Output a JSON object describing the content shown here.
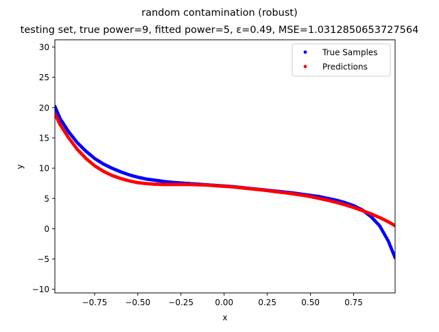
{
  "chart_data": {
    "type": "scatter",
    "title": "random contamination (robust)",
    "subtitle": "testing set, true power=9, fitted power=5, ε=0.49, MSE=1.0312850653727564",
    "xlabel": "x",
    "ylabel": "y",
    "xlim": [
      -0.98,
      0.99
    ],
    "ylim": [
      -10.6,
      31.2
    ],
    "x_ticks": [
      -0.75,
      -0.5,
      -0.25,
      0.0,
      0.25,
      0.5,
      0.75
    ],
    "x_tick_labels": [
      "−0.75",
      "−0.50",
      "−0.25",
      "0.00",
      "0.25",
      "0.50",
      "0.75"
    ],
    "y_ticks": [
      -10,
      -5,
      0,
      5,
      10,
      15,
      20,
      25,
      30
    ],
    "y_tick_labels": [
      "−10",
      "−5",
      "0",
      "5",
      "10",
      "15",
      "20",
      "25",
      "30"
    ],
    "grid": false,
    "legend_position": "upper right",
    "series": [
      {
        "name": "True Samples",
        "color": "#0000ff",
        "x": [
          -0.98,
          -0.95,
          -0.9,
          -0.85,
          -0.8,
          -0.75,
          -0.7,
          -0.65,
          -0.6,
          -0.55,
          -0.5,
          -0.45,
          -0.4,
          -0.35,
          -0.3,
          -0.25,
          -0.2,
          -0.15,
          -0.1,
          -0.05,
          0.0,
          0.05,
          0.1,
          0.15,
          0.2,
          0.25,
          0.3,
          0.35,
          0.4,
          0.45,
          0.5,
          0.55,
          0.6,
          0.65,
          0.7,
          0.75,
          0.8,
          0.85,
          0.9,
          0.95,
          0.99
        ],
        "y": [
          20.2,
          18.2,
          16.0,
          14.2,
          12.8,
          11.6,
          10.7,
          10.0,
          9.4,
          8.9,
          8.5,
          8.2,
          8.0,
          7.8,
          7.65,
          7.55,
          7.45,
          7.35,
          7.25,
          7.15,
          7.05,
          6.95,
          6.8,
          6.65,
          6.5,
          6.35,
          6.2,
          6.05,
          5.9,
          5.7,
          5.5,
          5.3,
          5.0,
          4.7,
          4.3,
          3.8,
          3.1,
          2.0,
          0.5,
          -2.0,
          -4.8
        ]
      },
      {
        "name": "Predictions",
        "color": "#ff0000",
        "x": [
          -0.98,
          -0.95,
          -0.9,
          -0.85,
          -0.8,
          -0.75,
          -0.7,
          -0.65,
          -0.6,
          -0.55,
          -0.5,
          -0.45,
          -0.4,
          -0.35,
          -0.3,
          -0.25,
          -0.2,
          -0.15,
          -0.1,
          -0.05,
          0.0,
          0.05,
          0.1,
          0.15,
          0.2,
          0.25,
          0.3,
          0.35,
          0.4,
          0.45,
          0.5,
          0.55,
          0.6,
          0.65,
          0.7,
          0.75,
          0.8,
          0.85,
          0.9,
          0.95,
          0.99
        ],
        "y": [
          19.0,
          17.2,
          15.0,
          13.1,
          11.6,
          10.4,
          9.5,
          8.8,
          8.3,
          7.9,
          7.6,
          7.45,
          7.35,
          7.3,
          7.3,
          7.3,
          7.3,
          7.25,
          7.2,
          7.1,
          7.0,
          6.9,
          6.75,
          6.6,
          6.45,
          6.3,
          6.1,
          5.95,
          5.75,
          5.55,
          5.3,
          5.0,
          4.7,
          4.35,
          3.95,
          3.5,
          3.0,
          2.45,
          1.85,
          1.15,
          0.5
        ]
      }
    ]
  }
}
